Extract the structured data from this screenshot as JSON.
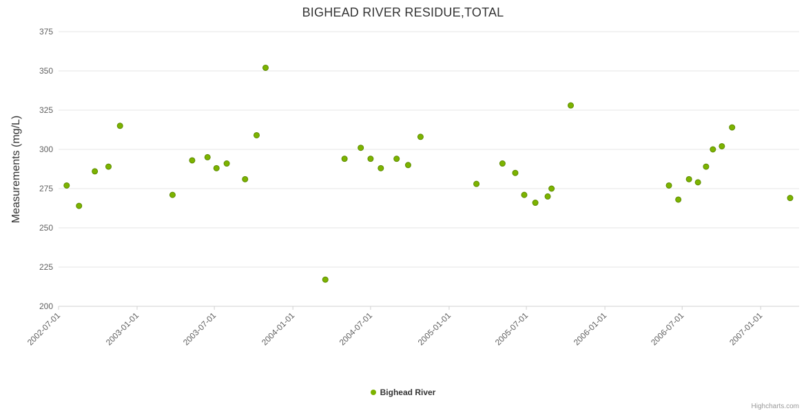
{
  "title": "BIGHEAD RIVER RESIDUE,TOTAL",
  "credit": "Highcharts.com",
  "colors": {
    "point_fill": "#7cb300",
    "point_stroke": "#5c8a00",
    "gridline": "#e6e6e6",
    "axis_line": "#d0d0d0"
  },
  "chart_data": {
    "type": "scatter",
    "title": "BIGHEAD RIVER RESIDUE,TOTAL",
    "xlabel": "",
    "ylabel": "Measurements (mg/L)",
    "ylim": [
      200,
      375
    ],
    "y_ticks": [
      200,
      225,
      250,
      275,
      300,
      325,
      350,
      375
    ],
    "x_ticks": [
      "2002-07-01",
      "2003-01-01",
      "2003-07-01",
      "2004-01-01",
      "2004-07-01",
      "2005-01-01",
      "2005-07-01",
      "2006-01-01",
      "2006-07-01",
      "2007-01-01"
    ],
    "x_range": [
      "2002-07-01",
      "2007-04-01"
    ],
    "grid": "horizontal",
    "legend_position": "bottom-center",
    "series": [
      {
        "name": "Bighead River",
        "color": "#7cb300",
        "points": [
          {
            "date": "2002-07-20",
            "value": 277
          },
          {
            "date": "2002-08-18",
            "value": 264
          },
          {
            "date": "2002-09-24",
            "value": 286
          },
          {
            "date": "2002-10-26",
            "value": 289
          },
          {
            "date": "2002-11-22",
            "value": 315
          },
          {
            "date": "2003-03-25",
            "value": 271
          },
          {
            "date": "2003-05-10",
            "value": 293
          },
          {
            "date": "2003-06-15",
            "value": 295
          },
          {
            "date": "2003-07-06",
            "value": 288
          },
          {
            "date": "2003-07-30",
            "value": 291
          },
          {
            "date": "2003-09-11",
            "value": 281
          },
          {
            "date": "2003-10-08",
            "value": 309
          },
          {
            "date": "2003-10-29",
            "value": 352
          },
          {
            "date": "2004-03-17",
            "value": 217
          },
          {
            "date": "2004-05-01",
            "value": 294
          },
          {
            "date": "2004-06-08",
            "value": 301
          },
          {
            "date": "2004-07-01",
            "value": 294
          },
          {
            "date": "2004-07-25",
            "value": 288
          },
          {
            "date": "2004-08-31",
            "value": 294
          },
          {
            "date": "2004-09-27",
            "value": 290
          },
          {
            "date": "2004-10-26",
            "value": 308
          },
          {
            "date": "2005-03-06",
            "value": 278
          },
          {
            "date": "2005-05-06",
            "value": 291
          },
          {
            "date": "2005-06-05",
            "value": 285
          },
          {
            "date": "2005-06-26",
            "value": 271
          },
          {
            "date": "2005-07-22",
            "value": 266
          },
          {
            "date": "2005-08-20",
            "value": 270
          },
          {
            "date": "2005-08-29",
            "value": 275
          },
          {
            "date": "2005-10-13",
            "value": 328
          },
          {
            "date": "2006-05-31",
            "value": 277
          },
          {
            "date": "2006-06-22",
            "value": 268
          },
          {
            "date": "2006-07-17",
            "value": 281
          },
          {
            "date": "2006-08-07",
            "value": 279
          },
          {
            "date": "2006-08-26",
            "value": 289
          },
          {
            "date": "2006-09-11",
            "value": 300
          },
          {
            "date": "2006-10-02",
            "value": 302
          },
          {
            "date": "2006-10-26",
            "value": 314
          },
          {
            "date": "2007-03-11",
            "value": 269
          }
        ]
      }
    ]
  }
}
